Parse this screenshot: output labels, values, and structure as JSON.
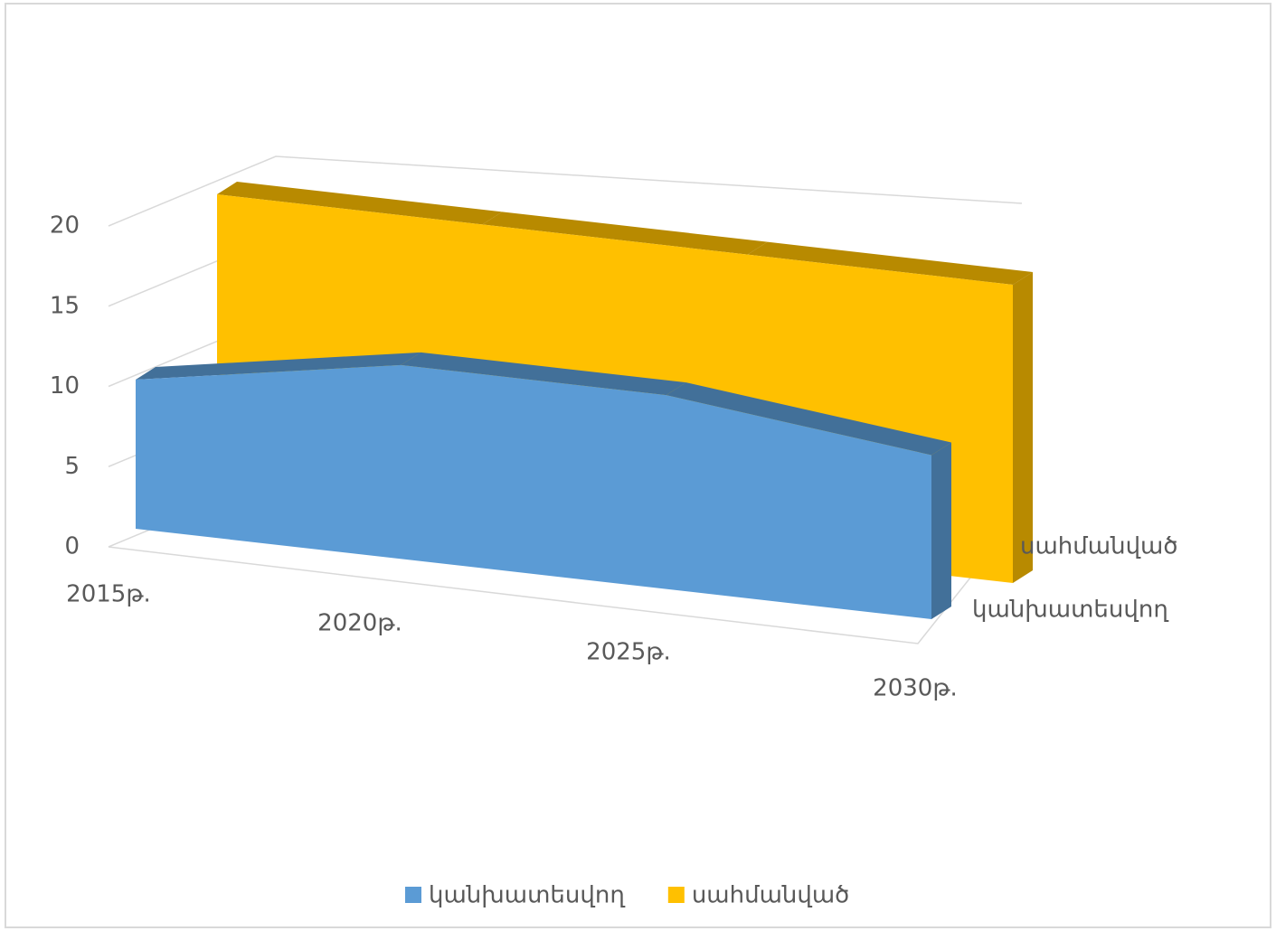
{
  "chart_data": {
    "type": "area3d",
    "categories": [
      "2015թ.",
      "2020թ.",
      "2025թ.",
      "2030թ."
    ],
    "series": [
      {
        "name": "կանխատեսվող",
        "color": "#5b9bd5",
        "values": [
          10,
          13,
          13,
          11
        ]
      },
      {
        "name": "սահմանված",
        "color": "#ffc000",
        "values": [
          20,
          20,
          20,
          20
        ]
      }
    ],
    "ylim": [
      0,
      20
    ],
    "yticks": [
      0,
      5,
      10,
      15,
      20
    ],
    "grid": true,
    "legend": "bottom"
  }
}
